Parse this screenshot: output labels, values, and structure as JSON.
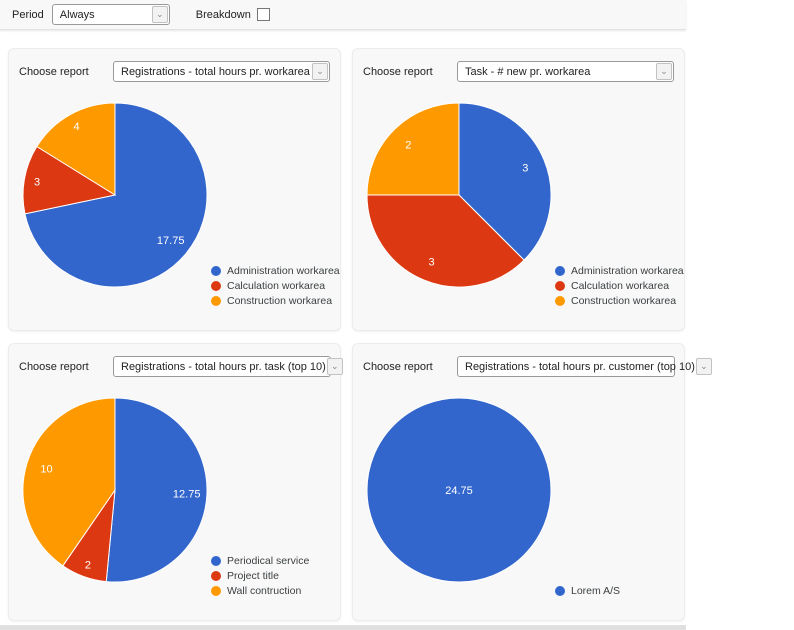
{
  "icons": {
    "chevron_down": "⌄"
  },
  "colors": {
    "blue": "#3366CC",
    "red": "#DC3912",
    "orange": "#FF9900"
  },
  "topbar": {
    "period_label": "Period",
    "period_value": "Always",
    "breakdown_label": "Breakdown",
    "breakdown_checked": false
  },
  "panels": [
    {
      "choose_label": "Choose report",
      "report": "Registrations - total hours pr. workarea",
      "chart": {
        "type": "pie",
        "slices": [
          {
            "label": "Administration workarea",
            "value": 17.75,
            "display": "17.75",
            "color": "#3366CC"
          },
          {
            "label": "Calculation workarea",
            "value": 3,
            "display": "3",
            "color": "#DC3912"
          },
          {
            "label": "Construction workarea",
            "value": 4,
            "display": "4",
            "color": "#FF9900"
          }
        ]
      }
    },
    {
      "choose_label": "Choose report",
      "report": "Task - # new pr. workarea",
      "chart": {
        "type": "pie",
        "slices": [
          {
            "label": "Administration workarea",
            "value": 3,
            "display": "3",
            "color": "#3366CC"
          },
          {
            "label": "Calculation workarea",
            "value": 3,
            "display": "3",
            "color": "#DC3912"
          },
          {
            "label": "Construction workarea",
            "value": 2,
            "display": "2",
            "color": "#FF9900"
          }
        ]
      }
    },
    {
      "choose_label": "Choose report",
      "report": "Registrations - total hours pr. task (top 10)",
      "chart": {
        "type": "pie",
        "slices": [
          {
            "label": "Periodical service",
            "value": 12.75,
            "display": "12.75",
            "color": "#3366CC"
          },
          {
            "label": "Project title",
            "value": 2,
            "display": "2",
            "color": "#DC3912"
          },
          {
            "label": "Wall contruction",
            "value": 10,
            "display": "10",
            "color": "#FF9900"
          }
        ]
      }
    },
    {
      "choose_label": "Choose report",
      "report": "Registrations - total hours pr. customer (top 10)",
      "chart": {
        "type": "pie",
        "slices": [
          {
            "label": "Lorem A/S",
            "value": 24.75,
            "display": "24.75",
            "color": "#3366CC"
          }
        ]
      }
    }
  ],
  "chart_data": [
    {
      "type": "pie",
      "title": "Registrations - total hours pr. workarea",
      "categories": [
        "Administration workarea",
        "Calculation workarea",
        "Construction workarea"
      ],
      "values": [
        17.75,
        3,
        4
      ],
      "colors": [
        "#3366CC",
        "#DC3912",
        "#FF9900"
      ],
      "legend_position": "bottom-right",
      "start_angle": "top",
      "direction": "clockwise"
    },
    {
      "type": "pie",
      "title": "Task - # new pr. workarea",
      "categories": [
        "Administration workarea",
        "Calculation workarea",
        "Construction workarea"
      ],
      "values": [
        3,
        3,
        2
      ],
      "colors": [
        "#3366CC",
        "#DC3912",
        "#FF9900"
      ],
      "legend_position": "bottom-right",
      "start_angle": "top",
      "direction": "clockwise"
    },
    {
      "type": "pie",
      "title": "Registrations - total hours pr. task (top 10)",
      "categories": [
        "Periodical service",
        "Project title",
        "Wall contruction"
      ],
      "values": [
        12.75,
        2,
        10
      ],
      "colors": [
        "#3366CC",
        "#DC3912",
        "#FF9900"
      ],
      "legend_position": "bottom-right",
      "start_angle": "top",
      "direction": "clockwise"
    },
    {
      "type": "pie",
      "title": "Registrations - total hours pr. customer (top 10)",
      "categories": [
        "Lorem A/S"
      ],
      "values": [
        24.75
      ],
      "colors": [
        "#3366CC"
      ],
      "legend_position": "bottom-right",
      "start_angle": "top",
      "direction": "clockwise"
    }
  ]
}
